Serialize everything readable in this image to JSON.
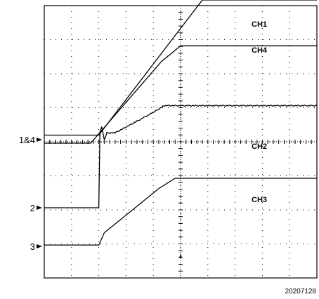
{
  "chart_data": {
    "type": "line",
    "grid": true,
    "figure_id": "20207128",
    "ref_markers": [
      {
        "label": "1&4",
        "ref": 0
      },
      {
        "label": "2",
        "ref": 0
      },
      {
        "label": "3",
        "ref": 0
      }
    ],
    "series": [
      {
        "name": "CH1",
        "t": [
          0,
          1.0,
          2.9,
          5.0
        ],
        "v": [
          0.03,
          0.03,
          4.0,
          4.0
        ]
      },
      {
        "name": "CH4",
        "t": [
          0,
          0.85,
          2.15,
          2.5,
          5.0
        ],
        "v": [
          0.0,
          0.0,
          2.4,
          2.86,
          2.86
        ]
      },
      {
        "name": "CH2",
        "t": [
          0,
          1.0,
          1.02,
          1.05,
          1.1,
          1.15,
          1.3,
          2.0,
          2.2,
          5.0
        ],
        "v": [
          0.0,
          0.0,
          1.1,
          1.2,
          1.0,
          1.1,
          1.1,
          1.4,
          1.5,
          1.5
        ],
        "noise": true
      },
      {
        "name": "CH3",
        "t": [
          0,
          1.0,
          1.1,
          2.1,
          2.4,
          5.0
        ],
        "v": [
          0.02,
          0.02,
          0.2,
          0.85,
          1.0,
          1.0
        ]
      }
    ]
  }
}
